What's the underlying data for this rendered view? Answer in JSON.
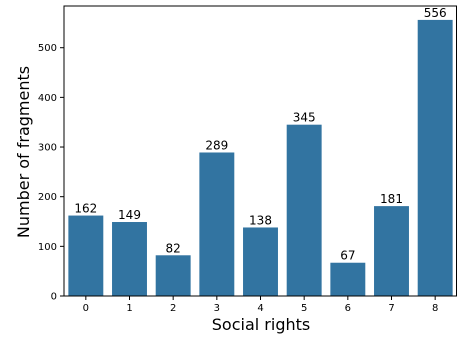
{
  "chart_data": {
    "type": "bar",
    "categories": [
      "0",
      "1",
      "2",
      "3",
      "4",
      "5",
      "6",
      "7",
      "8"
    ],
    "values": [
      162,
      149,
      82,
      289,
      138,
      345,
      67,
      181,
      556
    ],
    "data_labels": [
      "162",
      "149",
      "82",
      "289",
      "138",
      "345",
      "67",
      "181",
      "556"
    ],
    "title": "",
    "xlabel": "Social rights",
    "ylabel": "Number of fragments",
    "ylim": [
      0,
      584
    ],
    "yticks": [
      0,
      100,
      200,
      300,
      400,
      500
    ],
    "grid": false,
    "legend": "none",
    "bar_color": "#3274a1"
  }
}
